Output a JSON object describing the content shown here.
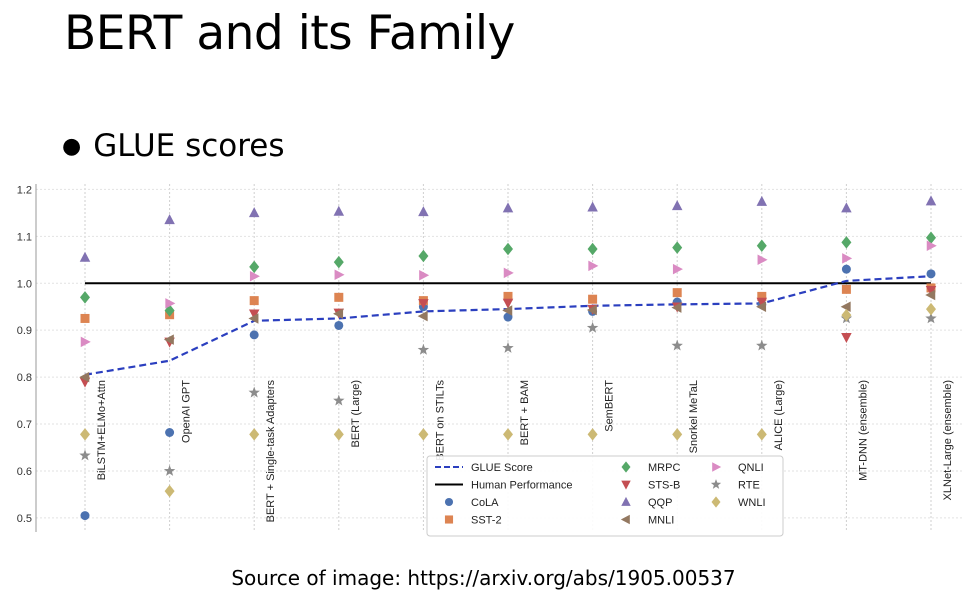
{
  "slide": {
    "title": "BERT and its Family",
    "bullet": "GLUE scores",
    "source": "Source of image: https://arxiv.org/abs/1905.00537"
  },
  "chart_data": {
    "type": "scatter",
    "title": "",
    "xlabel": "",
    "ylabel": "",
    "ylim": [
      0.47,
      1.22
    ],
    "yticks": [
      0.5,
      0.6,
      0.7,
      0.8,
      0.9,
      1.0,
      1.1,
      1.2
    ],
    "grid": true,
    "legend_position": "bottom-right",
    "categories": [
      "BiLSTM+ELMo+Attn",
      "OpenAI GPT",
      "BERT + Single-task Adapters",
      "BERT (Large)",
      "BERT on STILTs",
      "BERT + BAM",
      "SemBERT",
      "Snorkel MeTaL",
      "ALICE (Large)",
      "MT-DNN (ensemble)",
      "XLNet-Large (ensemble)"
    ],
    "glue_score": {
      "name": "GLUE Score",
      "color": "#2b3fbf",
      "values": [
        0.805,
        0.835,
        0.92,
        0.925,
        0.94,
        0.945,
        0.952,
        0.955,
        0.957,
        1.005,
        1.015
      ]
    },
    "human_performance": {
      "name": "Human Performance",
      "value": 1.0,
      "color": "#000000"
    },
    "series": [
      {
        "name": "CoLA",
        "marker": "circle",
        "color": "#4c72b0",
        "values": [
          0.505,
          0.682,
          0.89,
          0.91,
          0.95,
          0.928,
          0.94,
          0.96,
          0.955,
          1.03,
          1.02
        ]
      },
      {
        "name": "SST-2",
        "marker": "square",
        "color": "#dd8452",
        "values": [
          0.925,
          0.933,
          0.963,
          0.97,
          0.963,
          0.972,
          0.966,
          0.98,
          0.972,
          0.987,
          0.99
        ]
      },
      {
        "name": "MRPC",
        "marker": "diamond",
        "color": "#55a868",
        "values": [
          0.97,
          0.942,
          1.035,
          1.045,
          1.058,
          1.073,
          1.073,
          1.076,
          1.08,
          1.087,
          1.097
        ]
      },
      {
        "name": "STS-B",
        "marker": "triangle-down",
        "color": "#c44e52",
        "values": [
          0.79,
          0.875,
          0.935,
          0.937,
          0.957,
          0.958,
          0.945,
          0.95,
          0.96,
          0.885,
          0.985
        ]
      },
      {
        "name": "QQP",
        "marker": "triangle-up",
        "color": "#8172b2",
        "values": [
          1.055,
          1.135,
          1.15,
          1.153,
          1.152,
          1.16,
          1.162,
          1.165,
          1.174,
          1.16,
          1.175
        ]
      },
      {
        "name": "MNLI",
        "marker": "triangle-left",
        "color": "#937860",
        "values": [
          0.8,
          0.88,
          0.925,
          0.935,
          0.93,
          0.942,
          0.943,
          0.948,
          0.95,
          0.95,
          0.975
        ]
      },
      {
        "name": "QNLI",
        "marker": "triangle-right",
        "color": "#da8bc3",
        "values": [
          0.875,
          0.957,
          1.015,
          1.018,
          1.017,
          1.022,
          1.037,
          1.03,
          1.05,
          1.053,
          1.08
        ]
      },
      {
        "name": "RTE",
        "marker": "star",
        "color": "#8c8c8c",
        "values": [
          0.633,
          0.6,
          0.767,
          0.75,
          0.858,
          0.862,
          0.905,
          0.867,
          0.867,
          0.925,
          0.925
        ]
      },
      {
        "name": "WNLI",
        "marker": "diamond",
        "color": "#ccb974",
        "values": [
          0.678,
          0.557,
          0.678,
          0.678,
          0.678,
          0.678,
          0.678,
          0.678,
          0.678,
          0.932,
          0.945
        ]
      }
    ]
  }
}
